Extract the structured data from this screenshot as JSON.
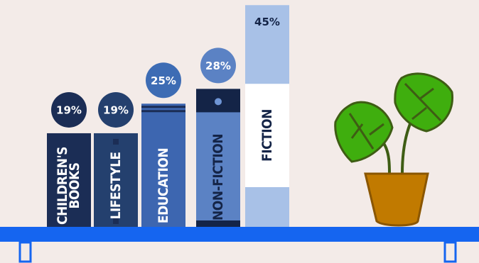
{
  "chart_data": {
    "type": "bar",
    "categories": [
      "CHILDREN'S BOOKS",
      "LIFESTYLE",
      "EDUCATION",
      "NON-FICTION",
      "FICTION"
    ],
    "values": [
      19,
      19,
      25,
      28,
      45
    ],
    "value_labels": [
      "19%",
      "19%",
      "25%",
      "28%",
      "45%"
    ],
    "colors": [
      "#1b2d55",
      "#24406e",
      "#3d66b0",
      "#5b82c4",
      "#a8c1e7"
    ]
  }
}
